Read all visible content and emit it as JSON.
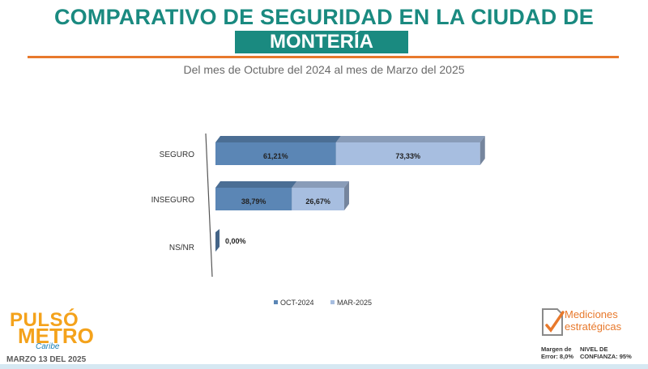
{
  "header": {
    "title_line1": "COMPARATIVO DE SEGURIDAD EN LA CIUDAD DE",
    "title_line2": "MONTERÍA",
    "subtitle": "Del mes de Octubre del 2024 al mes de Marzo del 2025"
  },
  "colors": {
    "teal": "#1a8a80",
    "orange": "#e8792c",
    "oct_series": "#5b86b5",
    "mar_series": "#a7bee0"
  },
  "chart_data": {
    "type": "bar",
    "orientation": "horizontal-stacked-3d",
    "categories": [
      "SEGURO",
      "INSEGURO",
      "NS/NR"
    ],
    "series": [
      {
        "name": "OCT-2024",
        "values": [
          61.21,
          38.79,
          0.0
        ],
        "labels": [
          "61,21%",
          "38,79%",
          "0,00%"
        ]
      },
      {
        "name": "MAR-2025",
        "values": [
          73.33,
          26.67,
          0.0
        ],
        "labels": [
          "73,33%",
          "26,67%",
          ""
        ]
      }
    ],
    "legend_position": "bottom",
    "xlim": [
      0,
      140
    ]
  },
  "footer": {
    "brand_left_1": "PULSÓ",
    "brand_left_2": "METRO",
    "brand_left_3": "Caribe",
    "date": "MARZO 13 DEL 2025",
    "brand_right_1": "Mediciones",
    "brand_right_2": "estratégicas",
    "margin_label": "Margen de Error: 8,0%",
    "confidence_label": "NIVEL DE CONFIANZA: 95%"
  }
}
